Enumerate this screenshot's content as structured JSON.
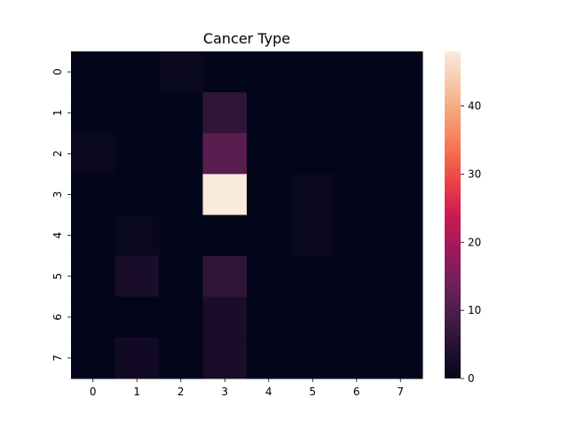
{
  "chart_data": {
    "type": "heatmap",
    "title": "Cancer Type",
    "x_ticks": [
      "0",
      "1",
      "2",
      "3",
      "4",
      "5",
      "6",
      "7"
    ],
    "y_ticks": [
      "0",
      "1",
      "2",
      "3",
      "4",
      "5",
      "6",
      "7"
    ],
    "values": [
      [
        0,
        0,
        1,
        0,
        0,
        0,
        0,
        0
      ],
      [
        0,
        0,
        0,
        6,
        0,
        0,
        0,
        0
      ],
      [
        1,
        0,
        0,
        11,
        0,
        0,
        0,
        0
      ],
      [
        0,
        0,
        0,
        48,
        0,
        1,
        0,
        0
      ],
      [
        0,
        1,
        0,
        0,
        0,
        1,
        0,
        0
      ],
      [
        0,
        3,
        0,
        6,
        0,
        0,
        0,
        0
      ],
      [
        0,
        0,
        0,
        3,
        0,
        0,
        0,
        0
      ],
      [
        0,
        2,
        0,
        3,
        0,
        0,
        0,
        0
      ]
    ],
    "colorbar": {
      "min": 0,
      "max": 48,
      "ticks": [
        0,
        10,
        20,
        30,
        40
      ],
      "colormap": "rocket"
    },
    "grid": false
  }
}
